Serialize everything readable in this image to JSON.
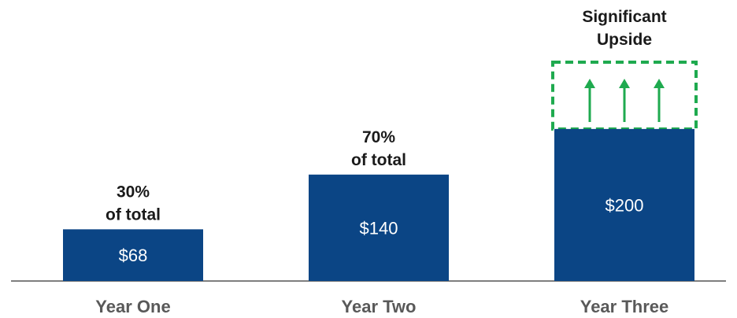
{
  "chart_data": {
    "type": "bar",
    "categories": [
      "Year One",
      "Year Two",
      "Year Three"
    ],
    "values": [
      68,
      140,
      200
    ],
    "value_labels": [
      "$68",
      "$140",
      "$200"
    ],
    "annotations": [
      [
        "30%",
        "of total"
      ],
      [
        "70%",
        "of total"
      ],
      [
        "Significant",
        "Upside"
      ]
    ],
    "upside": {
      "category": "Year Three",
      "arrow_count": 3,
      "icon": "up-arrow-icon"
    },
    "title": "",
    "xlabel": "",
    "ylabel": "",
    "ylim": [
      0,
      350
    ],
    "grid": false,
    "legend": "none"
  },
  "colors": {
    "bar": "#0b4585",
    "upside": "#1faa4f",
    "axis": "#7f7f7f",
    "bar_text": "#ffffff",
    "annotation_text": "#1a1a1a",
    "category_text": "#595959"
  }
}
